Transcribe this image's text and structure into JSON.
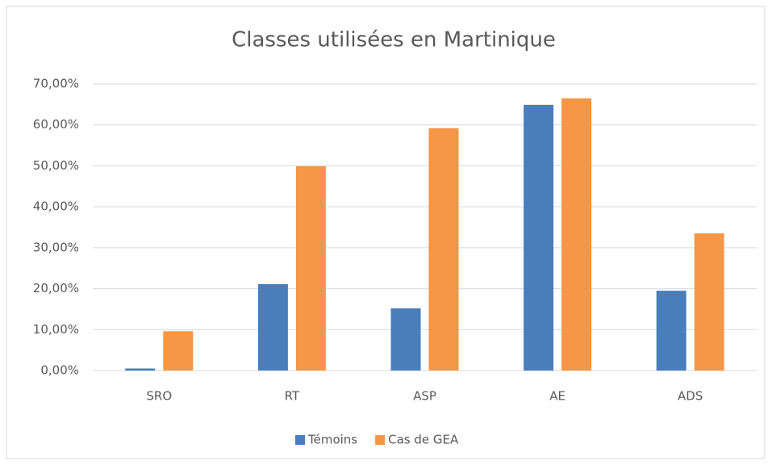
{
  "chart_data": {
    "type": "bar",
    "title": "Classes utilisées en Martinique",
    "categories": [
      "SRO",
      "RT",
      "ASP",
      "AE",
      "ADS"
    ],
    "series": [
      {
        "name": "Témoins",
        "color": "#4a7ebb",
        "values": [
          0.5,
          21.1,
          15.2,
          64.9,
          19.5
        ]
      },
      {
        "name": "Cas de GEA",
        "color": "#f79646",
        "values": [
          9.6,
          49.9,
          59.2,
          66.5,
          33.5
        ]
      }
    ],
    "ylim": [
      0,
      70
    ],
    "yticks": [
      {
        "value": 0,
        "label": "0,00%"
      },
      {
        "value": 10,
        "label": "10,00%"
      },
      {
        "value": 20,
        "label": "20,00%"
      },
      {
        "value": 30,
        "label": "30,00%"
      },
      {
        "value": 40,
        "label": "40,00%"
      },
      {
        "value": 50,
        "label": "50,00%"
      },
      {
        "value": 60,
        "label": "60,00%"
      },
      {
        "value": 70,
        "label": "70,00%"
      }
    ],
    "grid": true,
    "legend": "bottom"
  }
}
